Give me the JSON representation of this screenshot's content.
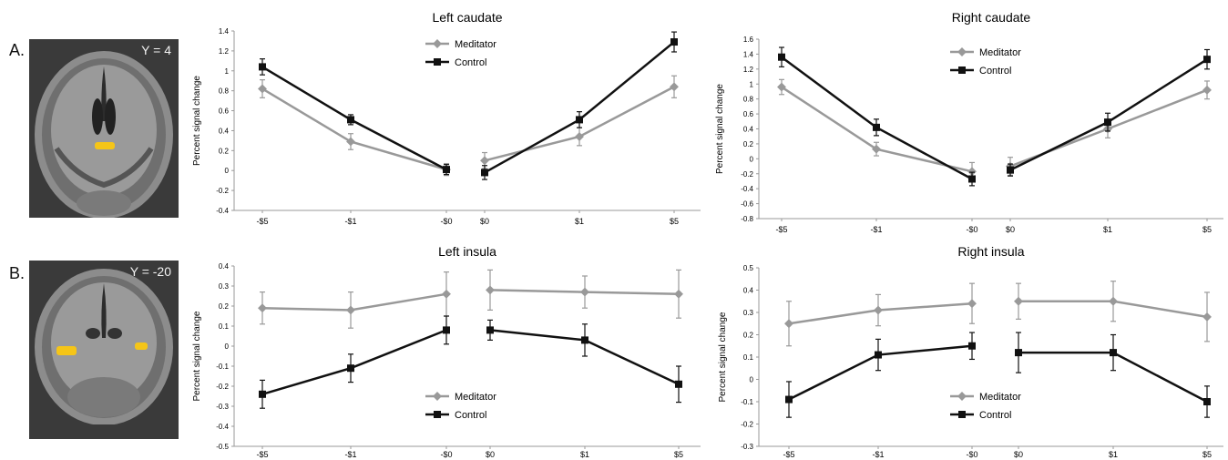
{
  "panels": [
    {
      "letter": "A.",
      "slice": "Y = 4"
    },
    {
      "letter": "B.",
      "slice": "Y = -20"
    }
  ],
  "colors": {
    "meditator": "#999999",
    "control": "#111111",
    "activation": "#f5c518"
  },
  "chart_data": [
    {
      "type": "line",
      "title": "Left caudate",
      "ylabel": "Percent signal change",
      "ylim": [
        -0.4,
        1.4
      ],
      "ytick_step": 0.2,
      "yticks": [
        "1.4",
        "1.2",
        "1",
        "0.8",
        "0.6",
        "0.4",
        "0.2",
        "0",
        "-0.2",
        "-0.4"
      ],
      "categories": [
        "-$5",
        "-$1",
        "-$0",
        "$0",
        "$1",
        "$5"
      ],
      "legend": {
        "position": "top-left"
      },
      "series": [
        {
          "name": "Meditator",
          "values": [
            0.82,
            0.29,
            0.01,
            0.1,
            0.34,
            0.84
          ],
          "err": [
            0.09,
            0.08,
            0.06,
            0.08,
            0.09,
            0.11
          ]
        },
        {
          "name": "Control",
          "values": [
            1.04,
            0.51,
            0.01,
            -0.02,
            0.51,
            1.29
          ],
          "err": [
            0.08,
            0.05,
            0.05,
            0.07,
            0.08,
            0.1
          ]
        }
      ]
    },
    {
      "type": "line",
      "title": "Right caudate",
      "ylabel": "Percent signal change",
      "ylim": [
        -0.8,
        1.6
      ],
      "ytick_step": 0.2,
      "yticks": [
        "1.6",
        "1.4",
        "1.2",
        "1",
        "0.8",
        "0.6",
        "0.4",
        "0.2",
        "0",
        "-0.2",
        "-0.4",
        "-0.6",
        "-0.8"
      ],
      "categories": [
        "-$5",
        "-$1",
        "-$0",
        "$0",
        "$1",
        "$5"
      ],
      "legend": {
        "position": "top-left"
      },
      "series": [
        {
          "name": "Meditator",
          "values": [
            0.96,
            0.13,
            -0.17,
            -0.1,
            0.4,
            0.92
          ],
          "err": [
            0.1,
            0.09,
            0.12,
            0.12,
            0.12,
            0.12
          ]
        },
        {
          "name": "Control",
          "values": [
            1.36,
            0.42,
            -0.27,
            -0.15,
            0.49,
            1.33
          ],
          "err": [
            0.13,
            0.11,
            0.09,
            0.08,
            0.12,
            0.13
          ]
        }
      ]
    },
    {
      "type": "line",
      "title": "Left insula",
      "ylabel": "Percent signal change",
      "ylim": [
        -0.5,
        0.4
      ],
      "ytick_step": 0.1,
      "yticks": [
        "0.4",
        "0.3",
        "0.2",
        "0.1",
        "0",
        "-0.1",
        "-0.2",
        "-0.3",
        "-0.4",
        "-0.5"
      ],
      "categories": [
        "-$5",
        "-$1",
        "-$0",
        "$0",
        "$1",
        "$5"
      ],
      "legend": {
        "position": "bottom-left"
      },
      "series": [
        {
          "name": "Meditator",
          "values": [
            0.19,
            0.18,
            0.26,
            0.28,
            0.27,
            0.26
          ],
          "err": [
            0.08,
            0.09,
            0.11,
            0.1,
            0.08,
            0.12
          ]
        },
        {
          "name": "Control",
          "values": [
            -0.24,
            -0.11,
            0.08,
            0.08,
            0.03,
            -0.19
          ],
          "err": [
            0.07,
            0.07,
            0.07,
            0.05,
            0.08,
            0.09
          ]
        }
      ]
    },
    {
      "type": "line",
      "title": "Right insula",
      "ylabel": "Percent signal change",
      "ylim": [
        -0.3,
        0.5
      ],
      "ytick_step": 0.1,
      "yticks": [
        "0.5",
        "0.4",
        "0.3",
        "0.2",
        "0.1",
        "0",
        "-0.1",
        "-0.2",
        "-0.3"
      ],
      "categories": [
        "-$5",
        "-$1",
        "-$0",
        "$0",
        "$1",
        "$5"
      ],
      "legend": {
        "position": "bottom-left"
      },
      "series": [
        {
          "name": "Meditator",
          "values": [
            0.25,
            0.31,
            0.34,
            0.35,
            0.35,
            0.28
          ],
          "err": [
            0.1,
            0.07,
            0.09,
            0.08,
            0.09,
            0.11
          ]
        },
        {
          "name": "Control",
          "values": [
            -0.09,
            0.11,
            0.15,
            0.12,
            0.12,
            -0.1
          ],
          "err": [
            0.08,
            0.07,
            0.06,
            0.09,
            0.08,
            0.07
          ]
        }
      ]
    }
  ]
}
